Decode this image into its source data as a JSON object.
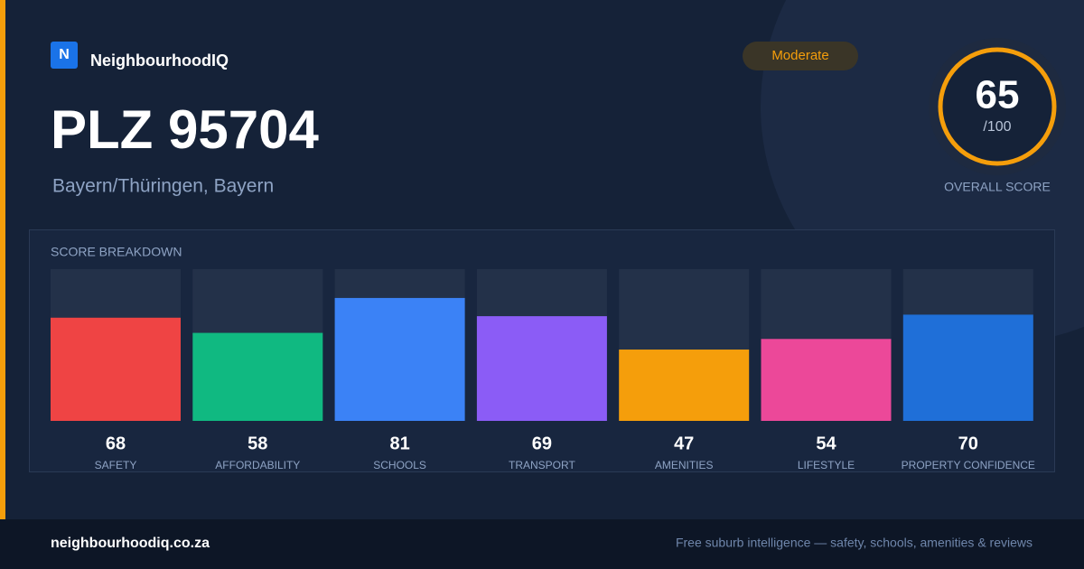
{
  "header": {
    "logo_letter": "N",
    "brand": "NeighbourhoodIQ",
    "badge": "Moderate"
  },
  "title": "PLZ 95704",
  "subtitle": "Bayern/Thüringen, Bayern",
  "score": {
    "value": 65,
    "max_label": "/100",
    "label": "OVERALL SCORE"
  },
  "chart_data": {
    "type": "bar",
    "title": "SCORE BREAKDOWN",
    "categories": [
      "SAFETY",
      "AFFORDABILITY",
      "SCHOOLS",
      "TRANSPORT",
      "AMENITIES",
      "LIFESTYLE",
      "PROPERTY CONFIDENCE"
    ],
    "values": [
      68,
      58,
      81,
      69,
      47,
      54,
      70
    ],
    "colors": [
      "#ef4444",
      "#10b981",
      "#3b82f6",
      "#8b5cf6",
      "#f59e0b",
      "#ec4899",
      "#1f6fd8"
    ],
    "ylim": [
      0,
      100
    ]
  },
  "footer": {
    "site": "neighbourhoodiq.co.za",
    "tagline": "Free suburb intelligence — safety, schools, amenities & reviews"
  }
}
